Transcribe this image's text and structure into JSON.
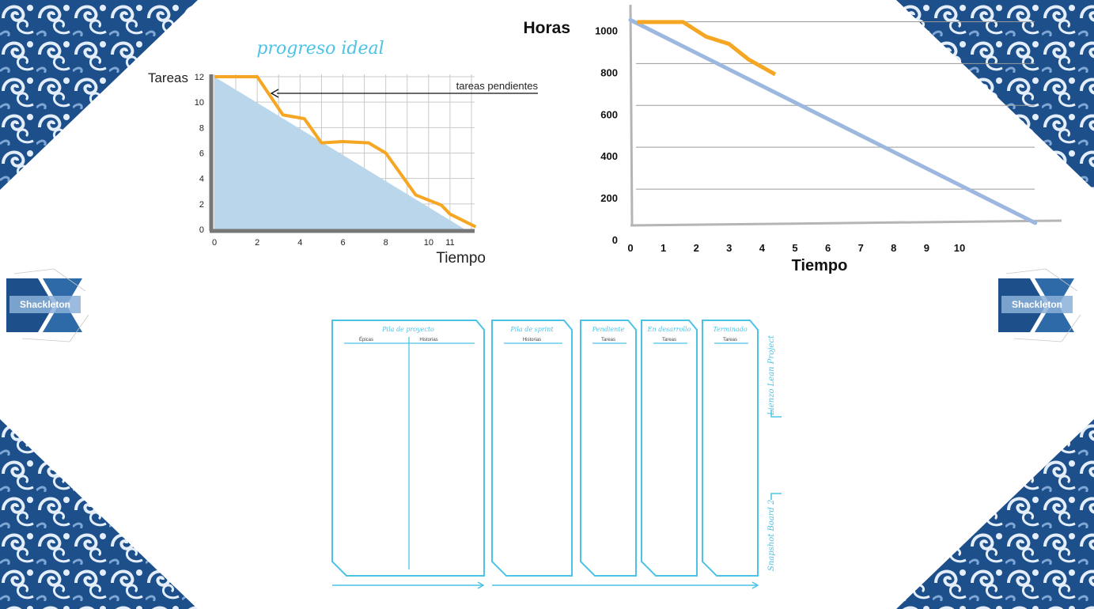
{
  "colors": {
    "accent": "#f5a623",
    "ideal_fill": "#b9d6ea",
    "ideal_line": "#9cb8de",
    "board": "#4cc3e6",
    "pattern_dark": "#1d4f8a",
    "pattern_light": "#e4eefa"
  },
  "chart_data": [
    {
      "type": "area",
      "ylabel": "Tareas",
      "xlabel": "Tiempo",
      "x_ticks": [
        "0",
        "2",
        "4",
        "6",
        "8",
        "10",
        "11"
      ],
      "y_ticks": [
        "0",
        "2",
        "4",
        "6",
        "8",
        "10",
        "12"
      ],
      "xlim": [
        0,
        12
      ],
      "ylim": [
        0,
        12
      ],
      "annotations": [
        "progreso ideal",
        "tareas pendientes"
      ],
      "series": [
        {
          "x": [
            0,
            11.7
          ],
          "y": [
            12,
            0
          ]
        },
        {
          "x": [
            0,
            2,
            3.2,
            4.2,
            5,
            6,
            7.2,
            8,
            9.4,
            10.6,
            11,
            12.2
          ],
          "y": [
            12,
            12,
            9,
            8.7,
            6.8,
            6.9,
            6.8,
            6,
            2.7,
            1.9,
            1.2,
            0.2
          ]
        }
      ]
    },
    {
      "type": "line",
      "ylabel": "Horas",
      "xlabel": "Tiempo",
      "x_ticks": [
        "0",
        "1",
        "2",
        "3",
        "4",
        "5",
        "6",
        "7",
        "8",
        "9",
        "10"
      ],
      "y_ticks": [
        "0",
        "200",
        "400",
        "600",
        "800",
        "1000"
      ],
      "xlim": [
        0,
        12.5
      ],
      "ylim": [
        0,
        1100
      ],
      "series": [
        {
          "x": [
            0,
            12.3
          ],
          "y": [
            1050,
            80
          ]
        },
        {
          "x": [
            0.2,
            1.6,
            2.3,
            3,
            3.6,
            4.4
          ],
          "y": [
            1040,
            1040,
            970,
            935,
            860,
            790
          ]
        }
      ]
    }
  ],
  "board": {
    "columns": [
      {
        "title": "Pila de proyecto",
        "subs": [
          "Épicas",
          "Historias"
        ]
      },
      {
        "title": "Pila de sprint",
        "subs": [
          "Historias"
        ]
      },
      {
        "title": "Pendiente",
        "subs": [
          "Tareas"
        ]
      },
      {
        "title": "En desarrollo",
        "subs": [
          "Tareas"
        ]
      },
      {
        "title": "Terminado",
        "subs": [
          "Tareas"
        ]
      }
    ],
    "side_labels": [
      "Lienzo Lean Project",
      "Snapshot Board 2"
    ]
  },
  "logo": {
    "text": "Shackleton"
  }
}
